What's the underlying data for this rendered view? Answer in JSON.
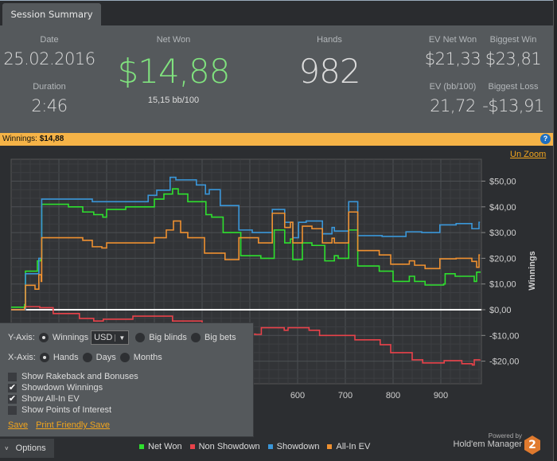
{
  "tab": {
    "label": "Session Summary"
  },
  "summary": {
    "date_label": "Date",
    "date": "25.02.2016",
    "duration_label": "Duration",
    "duration": "2:46",
    "net_won_label": "Net Won",
    "net_won": "$14,88",
    "bb100": "15,15 bb/100",
    "hands_label": "Hands",
    "hands": "982",
    "ev_net_won_label": "EV Net Won",
    "ev_net_won": "$21,33",
    "biggest_win_label": "Biggest Win",
    "biggest_win": "$23,81",
    "ev_bb100_label": "EV (bb/100)",
    "ev_bb100": "21,72",
    "biggest_loss_label": "Biggest Loss",
    "biggest_loss": "-$13,91"
  },
  "winbar": {
    "label": "Winnings:",
    "value": "$14,88",
    "help_icon": "question-circle-icon"
  },
  "unzoom": "Un Zoom",
  "options": {
    "y_axis_label": "Y-Axis:",
    "winnings": "Winnings",
    "currency": "USD",
    "big_blinds": "Big blinds",
    "big_bets": "Big bets",
    "x_axis_label": "X-Axis:",
    "hands": "Hands",
    "days": "Days",
    "months": "Months",
    "checkboxes": [
      {
        "label": "Show Rakeback and Bonuses",
        "checked": false
      },
      {
        "label": "Showdown Winnings",
        "checked": true
      },
      {
        "label": "Show All-In EV",
        "checked": true
      },
      {
        "label": "Show Points of Interest",
        "checked": false
      }
    ],
    "save": "Save",
    "print_save": "Print Friendly Save",
    "button": "Options"
  },
  "brand": {
    "powered": "Powered by",
    "name": "Hold'em Manager",
    "logo": "2"
  },
  "chart_data": {
    "type": "line",
    "ylabel": "Winnings",
    "xlabel": "Hands",
    "xlim": [
      0,
      982
    ],
    "ylim": [
      -25,
      55
    ],
    "x_ticks": [
      600,
      700,
      800,
      900
    ],
    "y_ticks": [
      {
        "v": 50,
        "label": "$50,00"
      },
      {
        "v": 40,
        "label": "$40,00"
      },
      {
        "v": 30,
        "label": "$30,00"
      },
      {
        "v": 20,
        "label": "$20,00"
      },
      {
        "v": 10,
        "label": "$10,00"
      },
      {
        "v": 0,
        "label": "$0,00"
      },
      {
        "v": -10,
        "label": "-$10,00"
      },
      {
        "v": -20,
        "label": "-$20,00"
      }
    ],
    "grid": true,
    "legend_position": "bottom",
    "series": [
      {
        "name": "Net Won",
        "color": "#2ee02e",
        "points": [
          [
            0,
            1
          ],
          [
            28,
            2
          ],
          [
            30,
            15
          ],
          [
            55,
            19
          ],
          [
            62,
            20
          ],
          [
            64,
            41
          ],
          [
            120,
            40
          ],
          [
            150,
            38
          ],
          [
            173,
            37
          ],
          [
            192,
            36
          ],
          [
            200,
            39
          ],
          [
            240,
            40
          ],
          [
            290,
            40
          ],
          [
            300,
            43
          ],
          [
            320,
            45
          ],
          [
            338,
            47
          ],
          [
            350,
            45
          ],
          [
            370,
            42
          ],
          [
            408,
            37
          ],
          [
            420,
            36
          ],
          [
            444,
            30
          ],
          [
            481,
            21
          ],
          [
            523,
            20
          ],
          [
            551,
            31
          ],
          [
            573,
            26
          ],
          [
            585,
            27.5
          ],
          [
            590,
            19.5
          ],
          [
            610,
            26
          ],
          [
            630,
            25
          ],
          [
            657,
            19
          ],
          [
            677,
            21
          ],
          [
            685,
            20
          ],
          [
            707,
            31
          ],
          [
            726,
            17
          ],
          [
            771,
            15
          ],
          [
            800,
            11
          ],
          [
            834,
            13
          ],
          [
            845,
            11
          ],
          [
            867,
            9.6
          ],
          [
            906,
            10
          ],
          [
            909,
            14
          ],
          [
            930,
            13
          ],
          [
            965,
            13
          ],
          [
            970,
            11
          ],
          [
            975,
            14.6
          ],
          [
            982,
            14.9
          ]
        ]
      },
      {
        "name": "Non Showdown",
        "color": "#e8424a",
        "points": [
          [
            0,
            0
          ],
          [
            30,
            1.2
          ],
          [
            60,
            0.8
          ],
          [
            88,
            -1.5
          ],
          [
            143,
            -3.4
          ],
          [
            173,
            -4.4
          ],
          [
            193,
            -3.7
          ],
          [
            255,
            -2.5
          ],
          [
            338,
            -4.4
          ],
          [
            400,
            -6
          ],
          [
            470,
            -8
          ],
          [
            505,
            -9.5
          ],
          [
            512,
            -9.6
          ],
          [
            524,
            -7
          ],
          [
            572,
            -8
          ],
          [
            580,
            -7
          ],
          [
            624,
            -8
          ],
          [
            646,
            -10
          ],
          [
            720,
            -11.7
          ],
          [
            773,
            -13.6
          ],
          [
            795,
            -16.7
          ],
          [
            840,
            -19.5
          ],
          [
            862,
            -20.7
          ],
          [
            907,
            -19.8
          ],
          [
            944,
            -21
          ],
          [
            966,
            -21.5
          ],
          [
            970,
            -19.5
          ],
          [
            982,
            -19.4
          ]
        ]
      },
      {
        "name": "Showdown",
        "color": "#3a96d8",
        "points": [
          [
            0,
            0
          ],
          [
            28,
            0
          ],
          [
            30,
            14
          ],
          [
            50,
            14
          ],
          [
            58,
            20
          ],
          [
            64,
            43
          ],
          [
            170,
            42
          ],
          [
            287,
            44.5
          ],
          [
            305,
            46.5
          ],
          [
            333,
            51.5
          ],
          [
            345,
            50.5
          ],
          [
            388,
            48.5
          ],
          [
            407,
            45
          ],
          [
            415,
            46.7
          ],
          [
            438,
            40.5
          ],
          [
            477,
            31
          ],
          [
            505,
            30
          ],
          [
            547,
            39
          ],
          [
            573,
            34
          ],
          [
            590,
            28
          ],
          [
            602,
            34
          ],
          [
            618,
            34.5
          ],
          [
            652,
            29.5
          ],
          [
            672,
            32
          ],
          [
            677,
            30.6
          ],
          [
            707,
            42
          ],
          [
            726,
            28.8
          ],
          [
            777,
            28.5
          ],
          [
            827,
            30.3
          ],
          [
            860,
            30
          ],
          [
            898,
            33
          ],
          [
            932,
            33.5
          ],
          [
            965,
            31.5
          ],
          [
            980,
            34
          ],
          [
            982,
            34
          ]
        ]
      },
      {
        "name": "All-In EV",
        "color": "#ee9030",
        "points": [
          [
            0,
            0
          ],
          [
            28,
            1
          ],
          [
            30,
            9.5
          ],
          [
            50,
            8
          ],
          [
            58,
            13.6
          ],
          [
            63,
            11
          ],
          [
            64,
            28
          ],
          [
            150,
            27
          ],
          [
            170,
            24.5
          ],
          [
            190,
            24
          ],
          [
            200,
            26
          ],
          [
            290,
            26
          ],
          [
            300,
            28
          ],
          [
            325,
            31
          ],
          [
            340,
            34.5
          ],
          [
            355,
            30
          ],
          [
            370,
            28
          ],
          [
            405,
            22
          ],
          [
            448,
            19.5
          ],
          [
            477,
            28
          ],
          [
            518,
            26
          ],
          [
            547,
            37.5
          ],
          [
            573,
            32
          ],
          [
            585,
            34
          ],
          [
            590,
            26
          ],
          [
            610,
            32.5
          ],
          [
            630,
            31.5
          ],
          [
            652,
            26
          ],
          [
            672,
            27.8
          ],
          [
            677,
            26
          ],
          [
            707,
            38
          ],
          [
            726,
            23
          ],
          [
            771,
            21.3
          ],
          [
            795,
            17.7
          ],
          [
            834,
            19
          ],
          [
            845,
            17.3
          ],
          [
            867,
            16
          ],
          [
            898,
            19.8
          ],
          [
            932,
            20
          ],
          [
            965,
            18.8
          ],
          [
            975,
            16.5
          ],
          [
            980,
            21.3
          ],
          [
            982,
            21.3
          ]
        ]
      }
    ]
  }
}
